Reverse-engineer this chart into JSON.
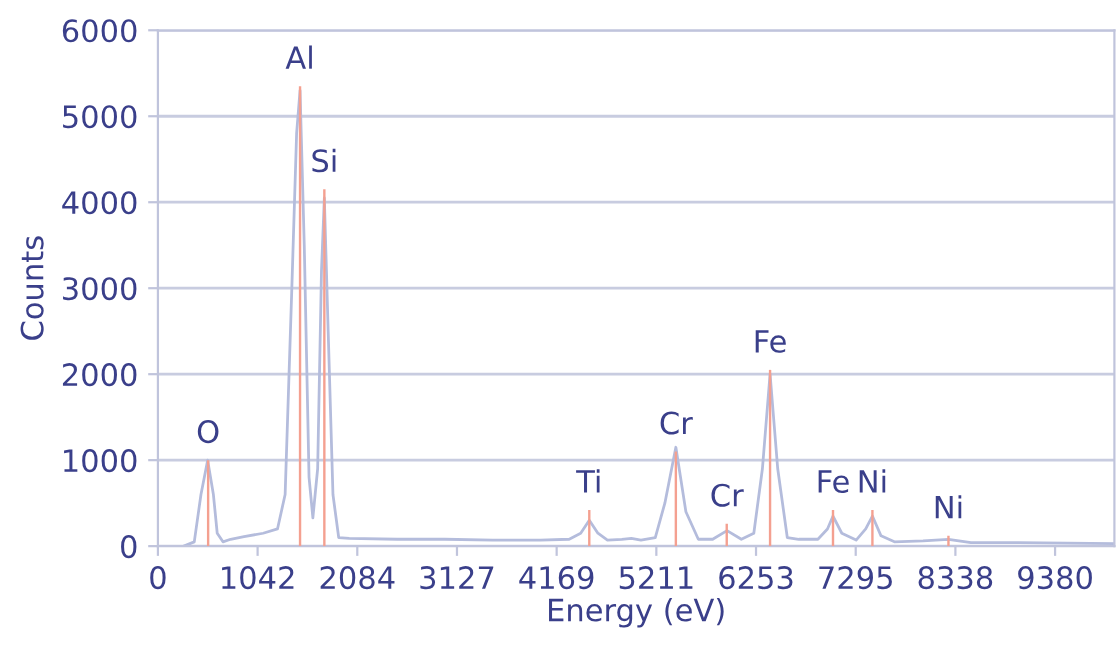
{
  "chart_data": {
    "type": "line",
    "xlabel": "Energy (eV)",
    "ylabel": "Counts",
    "xlim": [
      0,
      10000
    ],
    "ylim": [
      0,
      6000
    ],
    "xticks": [
      0,
      {
        "value": 1042.2,
        "label": "1042"
      },
      {
        "value": 2084.4,
        "label": "2084"
      },
      {
        "value": 3126.6,
        "label": "3127"
      },
      {
        "value": 4168.8,
        "label": "4169"
      },
      {
        "value": 5211,
        "label": "5211"
      },
      {
        "value": 6253.2,
        "label": "6253"
      },
      {
        "value": 7295.4,
        "label": "7295"
      },
      {
        "value": 8337.6,
        "label": "8338"
      },
      {
        "value": 9379.8,
        "label": "9380"
      }
    ],
    "yticks": [
      0,
      1000,
      2000,
      3000,
      4000,
      5000,
      6000
    ],
    "grid": "y",
    "series": [
      {
        "color": "#b4bcdc",
        "x": [
          270,
          380,
          450,
          520,
          580,
          620,
          680,
          760,
          900,
          1100,
          1250,
          1330,
          1400,
          1450,
          1486,
          1530,
          1580,
          1620,
          1670,
          1710,
          1740,
          1780,
          1830,
          1890,
          2000,
          2500,
          3000,
          3500,
          4000,
          4300,
          4420,
          4510,
          4600,
          4700,
          4850,
          4950,
          5050,
          5200,
          5300,
          5415,
          5520,
          5650,
          5800,
          5950,
          6100,
          6230,
          6320,
          6400,
          6480,
          6580,
          6700,
          6900,
          7000,
          7058,
          7150,
          7300,
          7400,
          7470,
          7560,
          7700,
          8000,
          8265,
          8500,
          9000,
          10000
        ],
        "values": [
          0,
          50,
          600,
          1000,
          600,
          150,
          50,
          80,
          110,
          150,
          200,
          600,
          3000,
          4800,
          5300,
          3500,
          800,
          330,
          900,
          3200,
          4050,
          2500,
          600,
          100,
          90,
          80,
          80,
          70,
          70,
          80,
          150,
          300,
          150,
          70,
          80,
          90,
          70,
          100,
          500,
          1150,
          400,
          80,
          80,
          180,
          80,
          150,
          900,
          2000,
          900,
          100,
          80,
          80,
          200,
          350,
          150,
          70,
          200,
          350,
          120,
          50,
          60,
          80,
          40,
          40,
          30
        ]
      },
      {
        "type": "bar",
        "color": "#f4a090",
        "x": [
          525,
          1486,
          1740,
          4510,
          5415,
          5947,
          6400,
          7058,
          7470,
          8265
        ],
        "values": [
          1000,
          5350,
          4150,
          420,
          1100,
          260,
          2050,
          420,
          420,
          120
        ]
      }
    ],
    "annotations": [
      {
        "text": "O",
        "x": 525,
        "y": 1000
      },
      {
        "text": "Al",
        "x": 1486,
        "y": 5350
      },
      {
        "text": "Si",
        "x": 1740,
        "y": 4150
      },
      {
        "text": "Ti",
        "x": 4510,
        "y": 420
      },
      {
        "text": "Cr",
        "x": 5415,
        "y": 1100
      },
      {
        "text": "Cr",
        "x": 5947,
        "y": 260
      },
      {
        "text": "Fe",
        "x": 6400,
        "y": 2050
      },
      {
        "text": "Fe",
        "x": 7058,
        "y": 420
      },
      {
        "text": "Ni",
        "x": 7470,
        "y": 420
      },
      {
        "text": "Ni",
        "x": 8265,
        "y": 120
      }
    ]
  }
}
